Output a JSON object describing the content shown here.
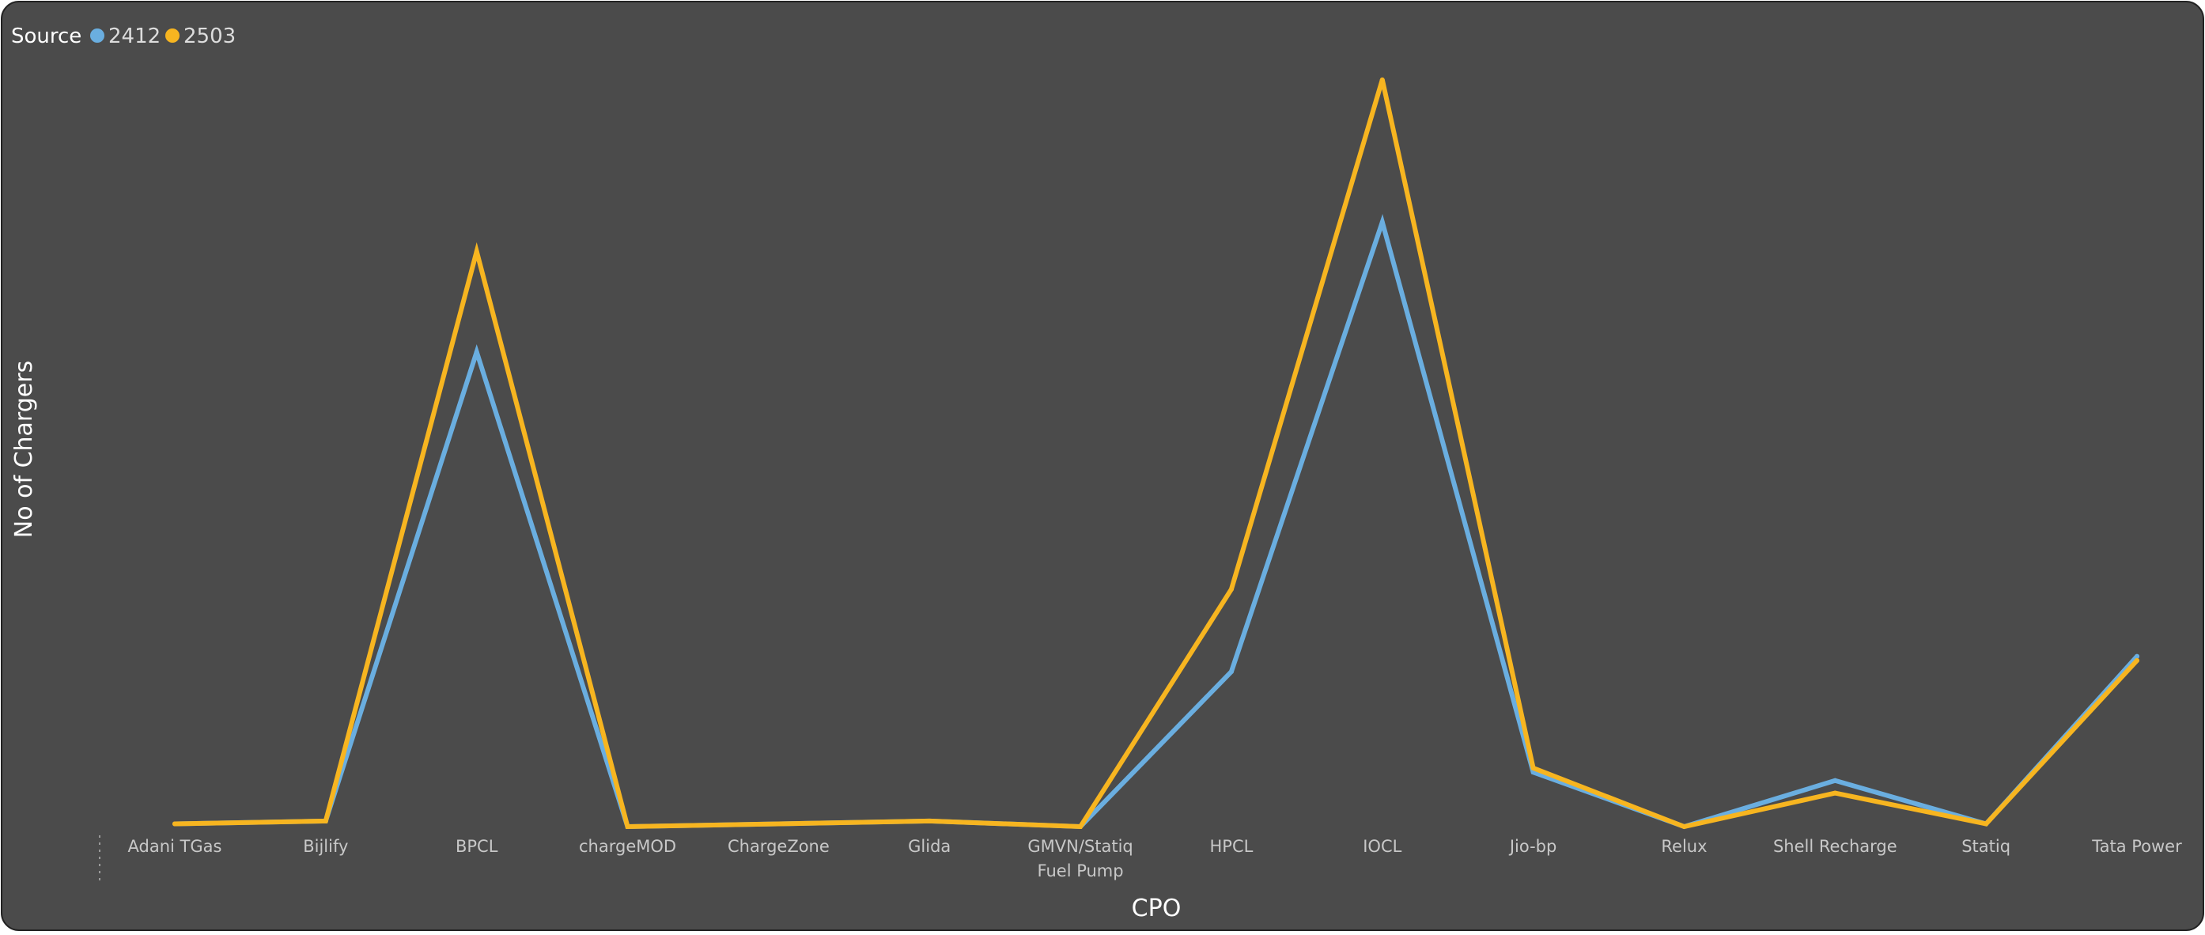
{
  "chart_data": {
    "type": "line",
    "title": "",
    "legend": {
      "title": "Source",
      "position": "top-left",
      "entries": [
        "2412",
        "2503"
      ]
    },
    "xlabel": "CPO",
    "ylabel": "No of Chargers",
    "categories": [
      "Adani TGas",
      "Bijlify",
      "BPCL",
      "chargeMOD",
      "ChargeZone",
      "Glida",
      "GMVN/Statiq Fuel Pump",
      "HPCL",
      "IOCL",
      "Jio-bp",
      "Relux",
      "Shell Recharge",
      "Statiq",
      "Tata Power"
    ],
    "ylim": [
      0,
      540
    ],
    "grid": false,
    "series": [
      {
        "name": "2412",
        "color": "#6AAEE0",
        "values": [
          2,
          4,
          340,
          0,
          2,
          4,
          0,
          111,
          433,
          39,
          0,
          33,
          2,
          122
        ]
      },
      {
        "name": "2503",
        "color": "#F7B520",
        "values": [
          2,
          4,
          412,
          0,
          2,
          4,
          0,
          170,
          535,
          42,
          0,
          24,
          2,
          119
        ]
      }
    ]
  }
}
